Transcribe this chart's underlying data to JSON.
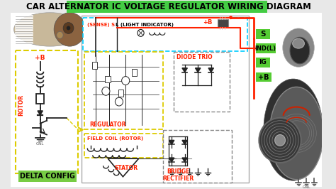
{
  "title": "CAR ALTERNATOR IC VOLTAGE REGULATOR WIRING DIAGRAM",
  "title_bg": "#44cc44",
  "title_color": "black",
  "title_fontsize": 8.5,
  "bg_color": "#e8e8e8",
  "diagram_area_bg": "#f0f0f0",
  "labels": {
    "sense": "(SENSE) S",
    "light_indicator": "L (LIGHT INDICATOR)",
    "plus_b_top": "+B",
    "diode_trio": "DIODE TRIO",
    "regulator": "REGULATOR",
    "field_coil": "FIELD COIL (ROTOR)",
    "stator": "STATOR",
    "bridge_rectifier": "BRIDGE\nRECTIFIER",
    "delta_config": "DELTA CONFIG",
    "plus_b_left": "+B",
    "rotor": "ROTOR",
    "S_label": "S",
    "ind_l": "IND(L)",
    "ig": "IG",
    "plus_b_right": "+B",
    "gnd": "GNL"
  },
  "colors": {
    "red": "#ff2200",
    "cyan_border": "#00ccff",
    "yellow_border": "#ddcc00",
    "gray_border": "#888888",
    "white_bg": "#ffffff",
    "label_green": "#66cc33",
    "label_orange": "#ff6600",
    "wire_red": "#dd0000",
    "wire_black": "#222222",
    "diagram_line": "#333333",
    "rotor_box_bg": "#ffffee",
    "diode_black": "#111111"
  }
}
